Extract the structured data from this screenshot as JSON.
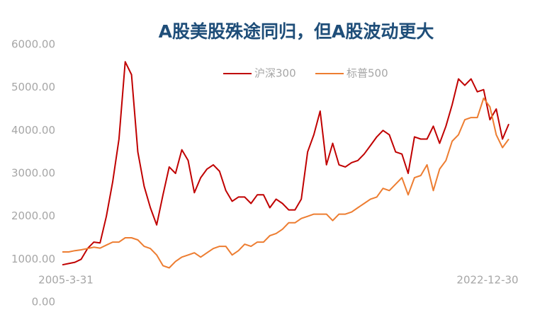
{
  "chart_data": {
    "type": "line",
    "title": "A股美股殊途同归，但A股波动更大",
    "categories": [
      "2005-3-31",
      null,
      null,
      null,
      null,
      null,
      null,
      null,
      null,
      null,
      null,
      null,
      null,
      null,
      null,
      null,
      null,
      null,
      null,
      null,
      null,
      null,
      null,
      null,
      null,
      null,
      null,
      null,
      null,
      null,
      null,
      null,
      null,
      null,
      null,
      null,
      null,
      null,
      null,
      null,
      null,
      null,
      null,
      null,
      null,
      null,
      null,
      null,
      null,
      null,
      null,
      null,
      null,
      null,
      null,
      null,
      null,
      null,
      null,
      null,
      null,
      null,
      null,
      null,
      null,
      null,
      null,
      null,
      null,
      null,
      null,
      "2022-12-30"
    ],
    "series": [
      {
        "name": "沪深300",
        "color": "#c00000",
        "values": [
          870,
          900,
          930,
          1000,
          1250,
          1400,
          1380,
          2000,
          2800,
          3800,
          5600,
          5300,
          3500,
          2700,
          2200,
          1800,
          2500,
          3150,
          3000,
          3550,
          3300,
          2550,
          2900,
          3100,
          3200,
          3050,
          2600,
          2350,
          2450,
          2450,
          2300,
          2500,
          2500,
          2200,
          2400,
          2300,
          2150,
          2150,
          2400,
          3500,
          3900,
          4450,
          3200,
          3700,
          3200,
          3150,
          3250,
          3300,
          3450,
          3650,
          3850,
          4000,
          3900,
          3500,
          3450,
          3000,
          3850,
          3800,
          3800,
          4100,
          3700,
          4100,
          4600,
          5200,
          5050,
          5200,
          4900,
          4950,
          4250,
          4500,
          3800,
          4150
        ]
      },
      {
        "name": "标普500",
        "color": "#ed7d31",
        "values": [
          1170,
          1170,
          1200,
          1220,
          1250,
          1280,
          1260,
          1330,
          1400,
          1400,
          1500,
          1500,
          1450,
          1300,
          1250,
          1100,
          850,
          800,
          950,
          1050,
          1100,
          1150,
          1050,
          1150,
          1250,
          1300,
          1300,
          1100,
          1200,
          1350,
          1300,
          1400,
          1400,
          1550,
          1600,
          1700,
          1850,
          1850,
          1950,
          2000,
          2050,
          2050,
          2050,
          1900,
          2050,
          2050,
          2100,
          2200,
          2300,
          2400,
          2450,
          2650,
          2600,
          2750,
          2900,
          2500,
          2900,
          2950,
          3200,
          2600,
          3100,
          3300,
          3750,
          3900,
          4250,
          4300,
          4300,
          4750,
          4550,
          3900,
          3600,
          3800
        ]
      }
    ],
    "ylim": [
      0,
      6000
    ],
    "yticks": [
      {
        "value": 0,
        "label": "0.00"
      },
      {
        "value": 1000,
        "label": "1000.00"
      },
      {
        "value": 2000,
        "label": "2000.00"
      },
      {
        "value": 3000,
        "label": "3000.00"
      },
      {
        "value": 4000,
        "label": "4000.00"
      },
      {
        "value": 5000,
        "label": "5000.00"
      },
      {
        "value": 6000,
        "label": "6000.00"
      }
    ]
  }
}
